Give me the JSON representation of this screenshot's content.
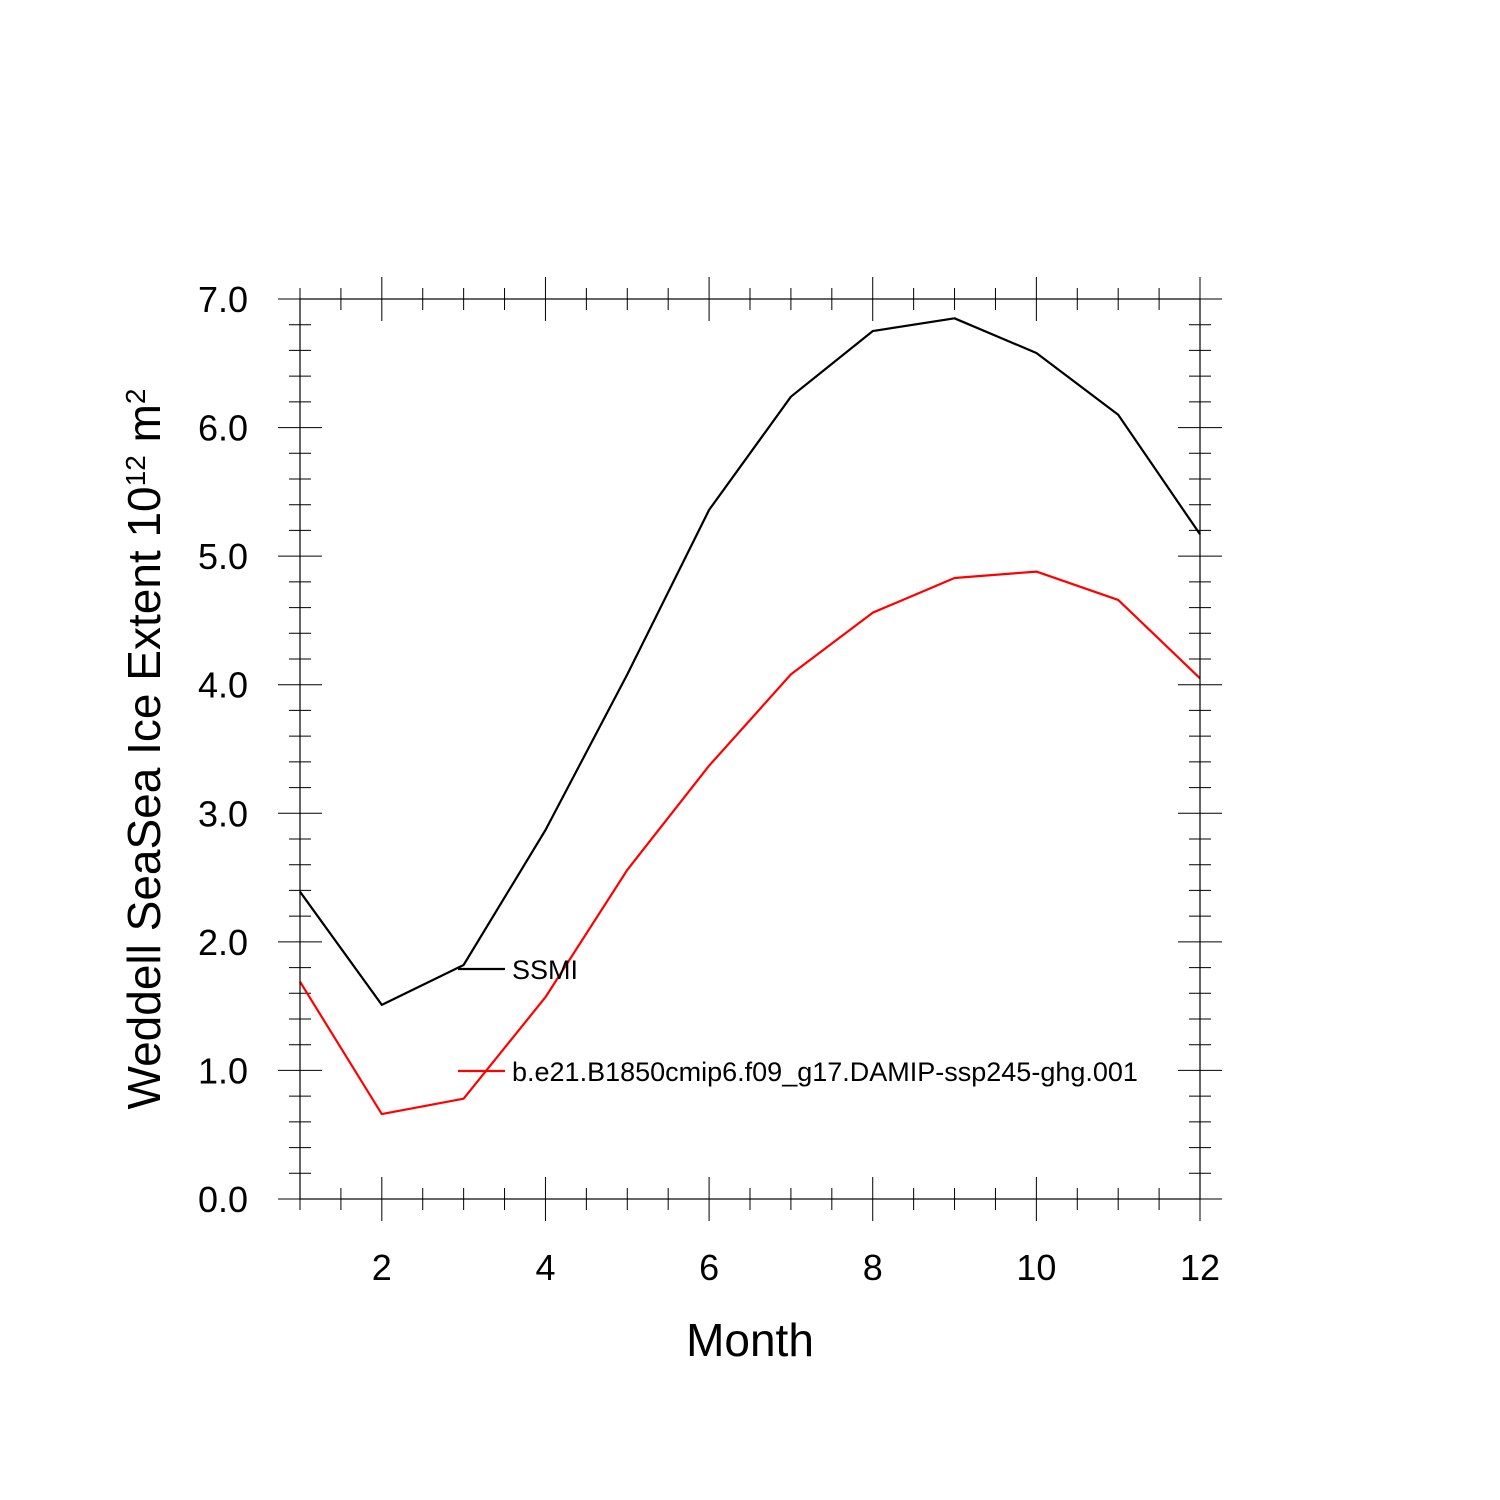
{
  "chart_data": {
    "type": "line",
    "title": "",
    "xlabel": "Month",
    "ylabel": {
      "prefix": "Weddell SeaSea Ice Extent 10",
      "exponent": "12",
      "unit": " m",
      "unit_exponent": "2"
    },
    "xlim": [
      1,
      12
    ],
    "ylim": [
      0,
      7
    ],
    "x_ticks": [
      2,
      4,
      6,
      8,
      10,
      12
    ],
    "y_ticks": [
      {
        "value": 0,
        "label": "0.0"
      },
      {
        "value": 1,
        "label": "1.0"
      },
      {
        "value": 2,
        "label": "2.0"
      },
      {
        "value": 3,
        "label": "3.0"
      },
      {
        "value": 4,
        "label": "4.0"
      },
      {
        "value": 5,
        "label": "5.0"
      },
      {
        "value": 6,
        "label": "6.0"
      },
      {
        "value": 7,
        "label": "7.0"
      }
    ],
    "x": [
      1,
      2,
      3,
      4,
      5,
      6,
      7,
      8,
      9,
      10,
      11,
      12
    ],
    "series": [
      {
        "name": "SSMI",
        "color": "#000000",
        "values": [
          2.39,
          1.51,
          1.82,
          2.87,
          4.08,
          5.36,
          6.24,
          6.75,
          6.85,
          6.58,
          6.1,
          5.17
        ]
      },
      {
        "name": "b.e21.B1850cmip6.f09_g17.DAMIP-ssp245-ghg.001",
        "color": "#ff0000",
        "values": [
          1.69,
          0.66,
          0.78,
          1.57,
          2.56,
          3.37,
          4.08,
          4.56,
          4.83,
          4.88,
          4.66,
          4.05
        ]
      }
    ],
    "legend": {
      "placement": "inside-lower-center",
      "entries": [
        "SSMI",
        "b.e21.B1850cmip6.f09_g17.DAMIP-ssp245-ghg.001"
      ]
    }
  }
}
